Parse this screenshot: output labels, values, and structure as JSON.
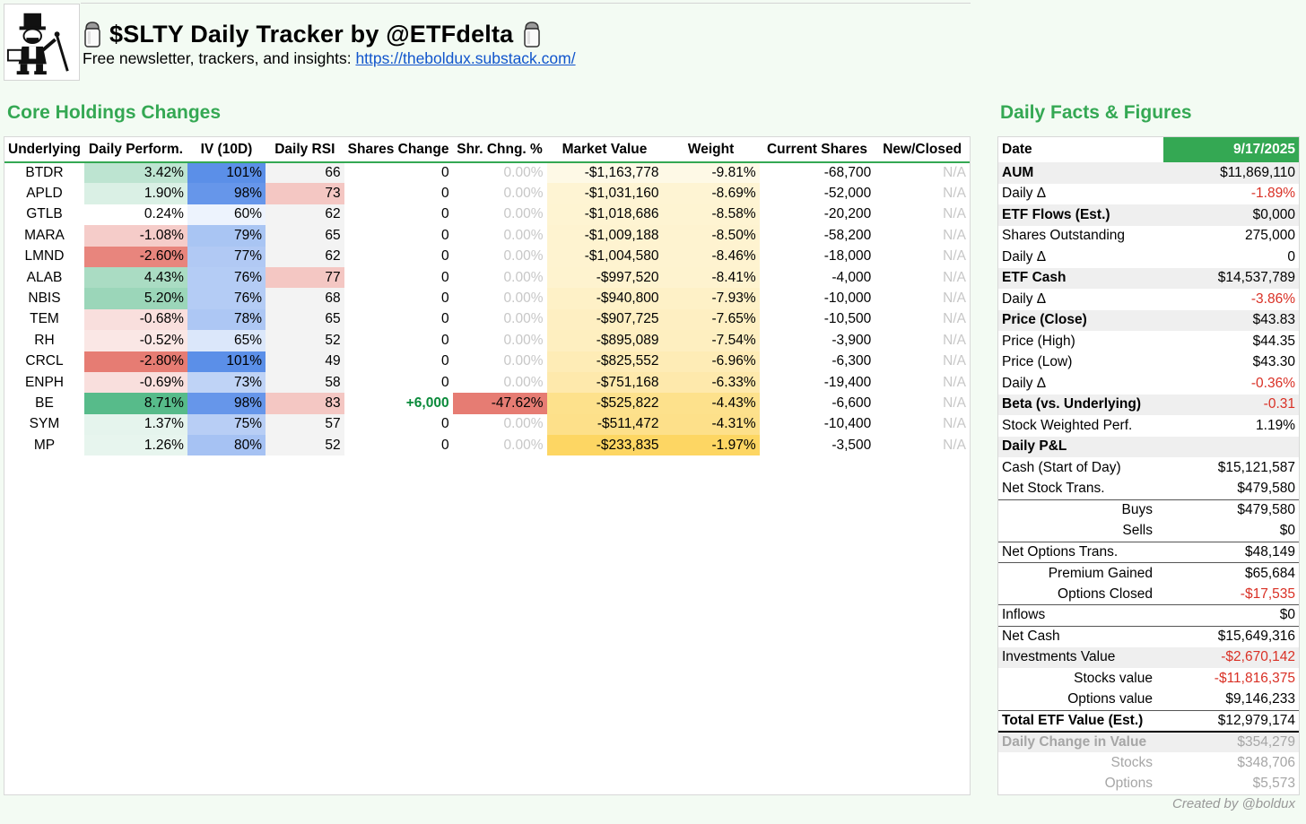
{
  "header": {
    "title": "$SLTY Daily Tracker by @ETFdelta",
    "subtitle_prefix": "Free newsletter, trackers, and insights: ",
    "link_text": "https://theboldux.substack.com/"
  },
  "holdings": {
    "section_title": "Core Holdings Changes",
    "columns": [
      "Underlying",
      "Daily Perform.",
      "IV (10D)",
      "Daily RSI",
      "Shares Change",
      "Shr. Chng. %",
      "Market Value",
      "Weight",
      "Current Shares",
      "New/Closed"
    ],
    "rows": [
      {
        "ticker": "BTDR",
        "perf": "3.42%",
        "iv": "101%",
        "rsi": "66",
        "chg": "0",
        "chg_pct": "0.00%",
        "mv": "-$1,163,778",
        "weight": "-9.81%",
        "shares": "-68,700",
        "status": "N/A"
      },
      {
        "ticker": "APLD",
        "perf": "1.90%",
        "iv": "98%",
        "rsi": "73",
        "chg": "0",
        "chg_pct": "0.00%",
        "mv": "-$1,031,160",
        "weight": "-8.69%",
        "shares": "-52,000",
        "status": "N/A"
      },
      {
        "ticker": "GTLB",
        "perf": "0.24%",
        "iv": "60%",
        "rsi": "62",
        "chg": "0",
        "chg_pct": "0.00%",
        "mv": "-$1,018,686",
        "weight": "-8.58%",
        "shares": "-20,200",
        "status": "N/A"
      },
      {
        "ticker": "MARA",
        "perf": "-1.08%",
        "iv": "79%",
        "rsi": "65",
        "chg": "0",
        "chg_pct": "0.00%",
        "mv": "-$1,009,188",
        "weight": "-8.50%",
        "shares": "-58,200",
        "status": "N/A"
      },
      {
        "ticker": "LMND",
        "perf": "-2.60%",
        "iv": "77%",
        "rsi": "62",
        "chg": "0",
        "chg_pct": "0.00%",
        "mv": "-$1,004,580",
        "weight": "-8.46%",
        "shares": "-18,000",
        "status": "N/A"
      },
      {
        "ticker": "ALAB",
        "perf": "4.43%",
        "iv": "76%",
        "rsi": "77",
        "chg": "0",
        "chg_pct": "0.00%",
        "mv": "-$997,520",
        "weight": "-8.41%",
        "shares": "-4,000",
        "status": "N/A"
      },
      {
        "ticker": "NBIS",
        "perf": "5.20%",
        "iv": "76%",
        "rsi": "68",
        "chg": "0",
        "chg_pct": "0.00%",
        "mv": "-$940,800",
        "weight": "-7.93%",
        "shares": "-10,000",
        "status": "N/A"
      },
      {
        "ticker": "TEM",
        "perf": "-0.68%",
        "iv": "78%",
        "rsi": "65",
        "chg": "0",
        "chg_pct": "0.00%",
        "mv": "-$907,725",
        "weight": "-7.65%",
        "shares": "-10,500",
        "status": "N/A"
      },
      {
        "ticker": "RH",
        "perf": "-0.52%",
        "iv": "65%",
        "rsi": "52",
        "chg": "0",
        "chg_pct": "0.00%",
        "mv": "-$895,089",
        "weight": "-7.54%",
        "shares": "-3,900",
        "status": "N/A"
      },
      {
        "ticker": "CRCL",
        "perf": "-2.80%",
        "iv": "101%",
        "rsi": "49",
        "chg": "0",
        "chg_pct": "0.00%",
        "mv": "-$825,552",
        "weight": "-6.96%",
        "shares": "-6,300",
        "status": "N/A"
      },
      {
        "ticker": "ENPH",
        "perf": "-0.69%",
        "iv": "73%",
        "rsi": "58",
        "chg": "0",
        "chg_pct": "0.00%",
        "mv": "-$751,168",
        "weight": "-6.33%",
        "shares": "-19,400",
        "status": "N/A"
      },
      {
        "ticker": "BE",
        "perf": "8.71%",
        "iv": "98%",
        "rsi": "83",
        "chg": "+6,000",
        "chg_pct": "-47.62%",
        "mv": "-$525,822",
        "weight": "-4.43%",
        "shares": "-6,600",
        "status": "N/A"
      },
      {
        "ticker": "SYM",
        "perf": "1.37%",
        "iv": "75%",
        "rsi": "57",
        "chg": "0",
        "chg_pct": "0.00%",
        "mv": "-$511,472",
        "weight": "-4.31%",
        "shares": "-10,400",
        "status": "N/A"
      },
      {
        "ticker": "MP",
        "perf": "1.26%",
        "iv": "80%",
        "rsi": "52",
        "chg": "0",
        "chg_pct": "0.00%",
        "mv": "-$233,835",
        "weight": "-1.97%",
        "shares": "-3,500",
        "status": "N/A"
      }
    ]
  },
  "facts": {
    "section_title": "Daily Facts & Figures",
    "rows": [
      {
        "label": "Date",
        "value": "9/17/2025",
        "style": "hdr"
      },
      {
        "label": "AUM",
        "value": "$11,869,110",
        "style": "bold shade"
      },
      {
        "label": "Daily Δ",
        "value": "-1.89%",
        "neg": true
      },
      {
        "label": "ETF Flows (Est.)",
        "value": "$0,000",
        "style": "bold shade"
      },
      {
        "label": "Shares Outstanding",
        "value": "275,000"
      },
      {
        "label": "Daily Δ",
        "value": "0"
      },
      {
        "label": "ETF Cash",
        "value": "$14,537,789",
        "style": "bold shade"
      },
      {
        "label": "Daily Δ",
        "value": "-3.86%",
        "neg": true
      },
      {
        "label": "Price (Close)",
        "value": "$43.83",
        "style": "bold shade"
      },
      {
        "label": "Price (High)",
        "value": "$44.35"
      },
      {
        "label": "Price (Low)",
        "value": "$43.30"
      },
      {
        "label": "Daily Δ",
        "value": "-0.36%",
        "neg": true
      },
      {
        "label": "Beta (vs. Underlying)",
        "value": "-0.31",
        "style": "bold shade",
        "neg": true
      },
      {
        "label": "Stock Weighted Perf.",
        "value": "1.19%"
      },
      {
        "label": "Daily P&L",
        "value": "",
        "style": "bold shade"
      },
      {
        "label": "Cash (Start of Day)",
        "value": "$15,121,587"
      },
      {
        "label": "Net Stock Trans.",
        "value": "$479,580"
      },
      {
        "label": "Buys",
        "value": "$479,580",
        "style": "indent topline"
      },
      {
        "label": "Sells",
        "value": "$0",
        "style": "indent"
      },
      {
        "label": "Net Options Trans.",
        "value": "$48,149",
        "style": "topline"
      },
      {
        "label": "Premium Gained",
        "value": "$65,684",
        "style": "indent topline"
      },
      {
        "label": "Options Closed",
        "value": "-$17,535",
        "style": "indent",
        "neg": true
      },
      {
        "label": "Inflows",
        "value": "$0",
        "style": "topline"
      },
      {
        "label": "Net Cash",
        "value": "$15,649,316",
        "style": "topline"
      },
      {
        "label": "Investments Value",
        "value": "-$2,670,142",
        "style": "shade",
        "neg": true
      },
      {
        "label": "Stocks value",
        "value": "-$11,816,375",
        "style": "indent",
        "neg": true
      },
      {
        "label": "Options value",
        "value": "$9,146,233",
        "style": "indent"
      },
      {
        "label": "Total ETF Value (Est.)",
        "value": "$12,979,174",
        "style": "bold topline"
      },
      {
        "label": "Daily Change in Value",
        "value": "$354,279",
        "style": "grey bold shade thick"
      },
      {
        "label": "Stocks",
        "value": "$348,706",
        "style": "grey indent"
      },
      {
        "label": "Options",
        "value": "$5,573",
        "style": "grey indent"
      }
    ]
  },
  "credit": "Created by @boldux"
}
